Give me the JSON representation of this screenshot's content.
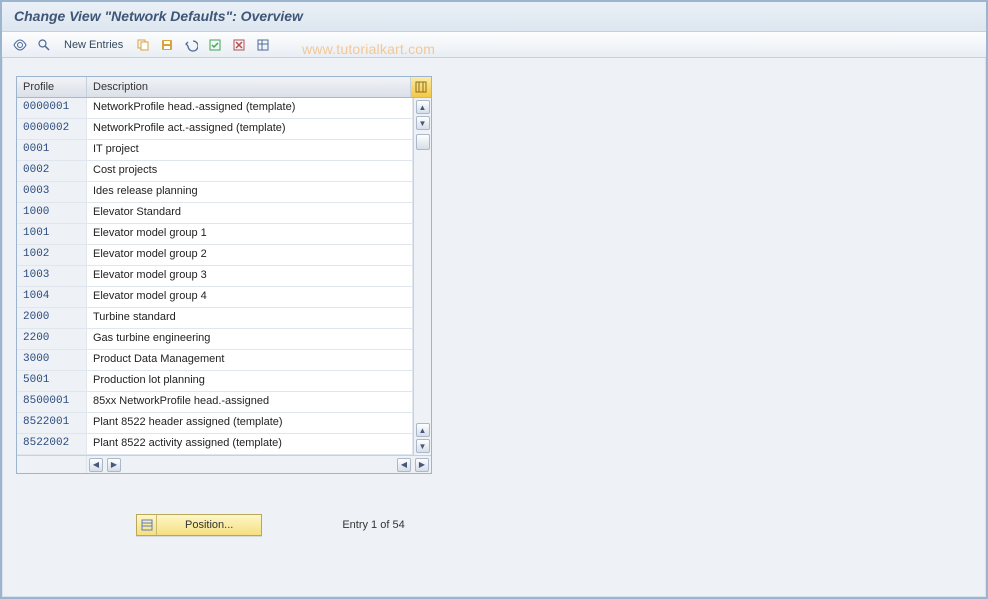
{
  "title": "Change View \"Network Defaults\": Overview",
  "toolbar": {
    "new_entries_label": "New Entries"
  },
  "watermark": "www.tutorialkart.com",
  "table": {
    "col_profile": "Profile",
    "col_description": "Description",
    "rows": [
      {
        "profile": "0000001",
        "desc": "NetworkProfile head.-assigned (template)"
      },
      {
        "profile": "0000002",
        "desc": "NetworkProfile act.-assigned (template)"
      },
      {
        "profile": "0001",
        "desc": "IT project"
      },
      {
        "profile": "0002",
        "desc": "Cost projects"
      },
      {
        "profile": "0003",
        "desc": "Ides release planning"
      },
      {
        "profile": "1000",
        "desc": "Elevator Standard"
      },
      {
        "profile": "1001",
        "desc": "Elevator model group 1"
      },
      {
        "profile": "1002",
        "desc": "Elevator model group 2"
      },
      {
        "profile": "1003",
        "desc": "Elevator model group 3"
      },
      {
        "profile": "1004",
        "desc": "Elevator model group 4"
      },
      {
        "profile": "2000",
        "desc": "Turbine standard"
      },
      {
        "profile": "2200",
        "desc": "Gas turbine engineering"
      },
      {
        "profile": "3000",
        "desc": "Product Data Management"
      },
      {
        "profile": "5001",
        "desc": "Production lot planning"
      },
      {
        "profile": "8500001",
        "desc": "85xx NetworkProfile head.-assigned"
      },
      {
        "profile": "8522001",
        "desc": "Plant 8522 header assigned (template)"
      },
      {
        "profile": "8522002",
        "desc": "Plant 8522 activity assigned (template)"
      }
    ]
  },
  "footer": {
    "position_label": "Position...",
    "entry_text": "Entry 1 of 54"
  },
  "colors": {
    "border": "#9cb4ce",
    "header_bg": "#e1e7ef",
    "accent_yellow": "#f5df7f",
    "watermark": "#f5b66b"
  }
}
